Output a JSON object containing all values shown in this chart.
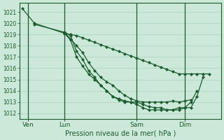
{
  "background_color": "#cce8d8",
  "grid_color": "#b0d8c0",
  "line_color": "#1a5c30",
  "marker_color": "#1a5c30",
  "title": "Pression niveau de la mer( hPa )",
  "ylabel_values": [
    1012,
    1013,
    1014,
    1015,
    1016,
    1017,
    1018,
    1019,
    1020,
    1021
  ],
  "ylim": [
    1011.5,
    1021.8
  ],
  "x_tick_labels": [
    "Ven",
    "Lun",
    "Sam",
    "Dim"
  ],
  "x_tick_positions": [
    1,
    7,
    19,
    27
  ],
  "x_vline_positions": [
    1,
    7,
    19,
    27
  ],
  "xlim": [
    -0.5,
    33
  ],
  "series": [
    {
      "x": [
        0,
        2,
        7,
        8,
        9,
        10,
        11,
        12,
        13,
        14,
        15,
        16,
        17,
        18,
        19,
        20,
        21,
        22,
        23,
        24,
        25,
        26,
        27,
        28,
        29,
        30,
        31
      ],
      "y": [
        1021.3,
        1020.0,
        1019.1,
        1019.0,
        1018.9,
        1018.7,
        1018.5,
        1018.3,
        1018.1,
        1017.9,
        1017.7,
        1017.5,
        1017.3,
        1017.1,
        1016.9,
        1016.7,
        1016.5,
        1016.3,
        1016.1,
        1015.9,
        1015.7,
        1015.5,
        1015.5,
        1015.5,
        1015.5,
        1015.5,
        1015.5
      ]
    },
    {
      "x": [
        2,
        7,
        8,
        9,
        10,
        11,
        12,
        13,
        14,
        15,
        16,
        17,
        18,
        19,
        20,
        21,
        22,
        23,
        24,
        25,
        26,
        27,
        28
      ],
      "y": [
        1019.9,
        1019.2,
        1018.6,
        1018.0,
        1017.4,
        1016.5,
        1015.8,
        1015.2,
        1014.8,
        1014.5,
        1014.0,
        1013.6,
        1013.3,
        1013.1,
        1013.0,
        1013.0,
        1013.0,
        1013.0,
        1013.0,
        1013.1,
        1013.0,
        1013.1,
        1013.2
      ]
    },
    {
      "x": [
        7,
        8,
        9,
        10,
        11,
        12,
        13,
        14,
        15,
        16,
        17,
        18,
        19,
        20,
        21,
        22,
        23,
        24,
        25,
        26,
        27,
        28,
        29
      ],
      "y": [
        1019.2,
        1018.9,
        1017.5,
        1016.8,
        1015.8,
        1015.2,
        1014.5,
        1014.0,
        1013.5,
        1013.3,
        1013.1,
        1013.0,
        1013.0,
        1012.8,
        1012.6,
        1012.5,
        1012.5,
        1012.3,
        1012.3,
        1012.5,
        1012.5,
        1013.0,
        1014.0
      ]
    },
    {
      "x": [
        7,
        8,
        9,
        10,
        11,
        12,
        13,
        14,
        15,
        16,
        17,
        18,
        19,
        20,
        21,
        22,
        23,
        24,
        25,
        26,
        27,
        28,
        29,
        30
      ],
      "y": [
        1019.1,
        1018.5,
        1017.0,
        1016.2,
        1015.5,
        1015.0,
        1014.5,
        1014.0,
        1013.5,
        1013.2,
        1013.0,
        1013.0,
        1012.8,
        1012.5,
        1012.3,
        1012.3,
        1012.3,
        1012.3,
        1012.3,
        1012.3,
        1012.5,
        1012.5,
        1013.5,
        1015.2
      ]
    }
  ]
}
